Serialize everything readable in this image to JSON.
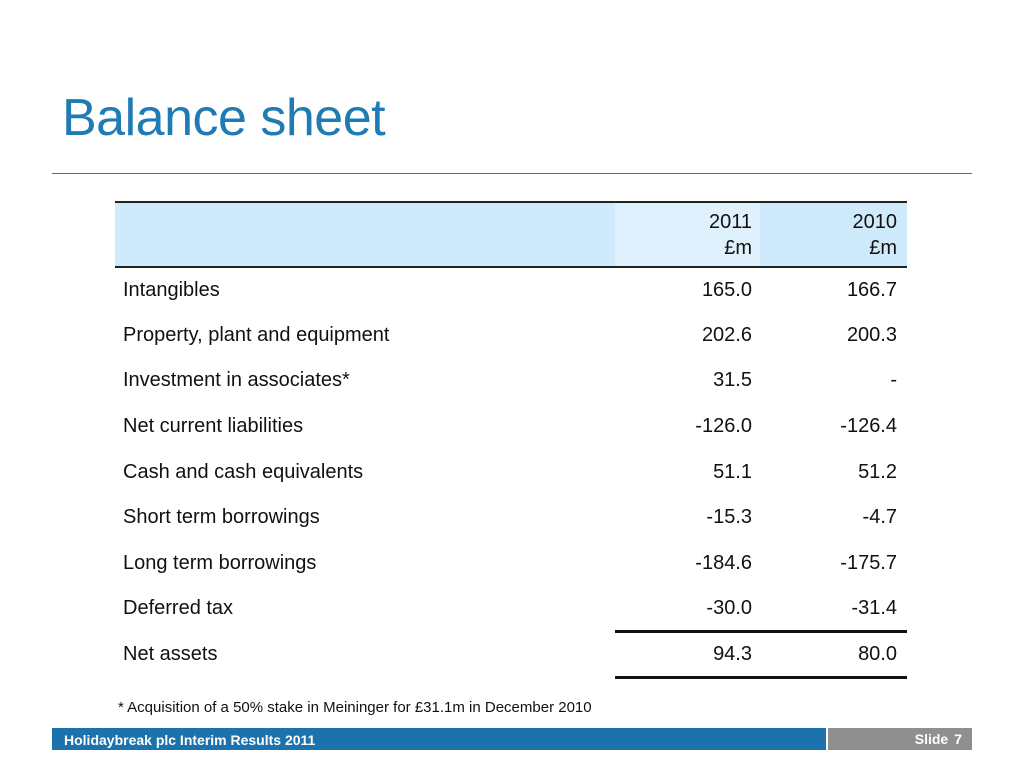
{
  "slide": {
    "title": "Balance sheet",
    "footnote": "* Acquisition of a 50% stake in Meininger for £31.1m in December 2010",
    "footer_text": "Holidaybreak plc Interim Results 2011",
    "slide_label": "Slide",
    "slide_number": "7"
  },
  "table": {
    "columns": [
      {
        "year": "2011",
        "unit": "£m"
      },
      {
        "year": "2010",
        "unit": "£m"
      }
    ],
    "rows": [
      {
        "label": "Intangibles",
        "v2011": "165.0",
        "v2010": "166.7"
      },
      {
        "label": "Property, plant and equipment",
        "v2011": "202.6",
        "v2010": "200.3"
      },
      {
        "label": "Investment in associates*",
        "v2011": "31.5",
        "v2010": "-"
      },
      {
        "label": "Net current liabilities",
        "v2011": "-126.0",
        "v2010": "-126.4"
      },
      {
        "label": "Cash and cash equivalents",
        "v2011": "51.1",
        "v2010": "51.2"
      },
      {
        "label": "Short term borrowings",
        "v2011": "-15.3",
        "v2010": "-4.7"
      },
      {
        "label": "Long term borrowings",
        "v2011": "-184.6",
        "v2010": "-175.7"
      },
      {
        "label": "Deferred tax",
        "v2011": "-30.0",
        "v2010": "-31.4"
      },
      {
        "label": "Net assets",
        "v2011": "94.3",
        "v2010": "80.0"
      }
    ]
  }
}
